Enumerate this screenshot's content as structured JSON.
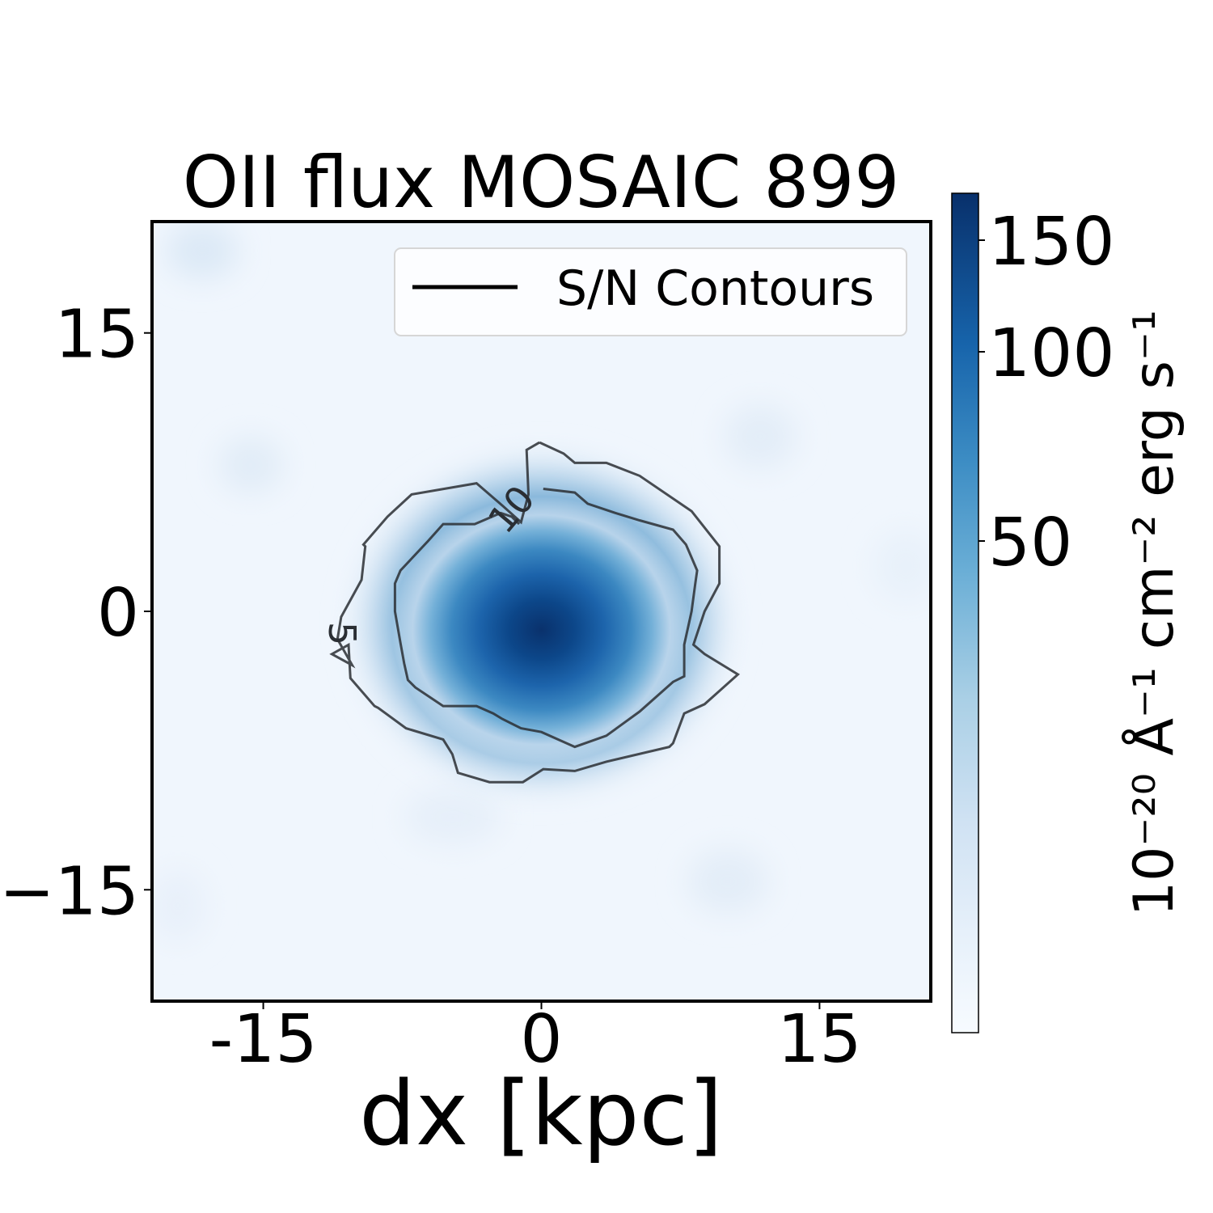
{
  "chart_data": {
    "type": "heatmap",
    "title": "OII flux MOSAIC 899",
    "xlabel": "dx [kpc]",
    "ylabel": "",
    "xlim": [
      -21,
      21
    ],
    "ylim": [
      -21,
      21
    ],
    "x_ticks": [
      -15,
      0,
      15
    ],
    "x_tick_labels": [
      "-15",
      "0",
      "15"
    ],
    "y_ticks": [
      15,
      0,
      -15
    ],
    "y_tick_labels": [
      "15",
      "0",
      "−15"
    ],
    "colormap": "Blues",
    "colorbar": {
      "label": "10⁻²⁰ Å⁻¹ cm⁻² erg s⁻¹",
      "range": [
        0,
        170
      ],
      "ticks": [
        150,
        100,
        50
      ],
      "tick_labels": [
        "150",
        "100",
        "50"
      ],
      "scale": "nonlinear"
    },
    "peak": {
      "x": 0,
      "y": -1,
      "value": 170
    },
    "contours": [
      {
        "level": 5,
        "label": "5",
        "points": [
          [
            -0.1,
            9.1
          ],
          [
            1.2,
            8.5
          ],
          [
            1.8,
            8
          ],
          [
            3.5,
            8
          ],
          [
            5.3,
            7.3
          ],
          [
            8.1,
            5.4
          ],
          [
            9.6,
            3.5
          ],
          [
            9.6,
            1.5
          ],
          [
            8.8,
            0
          ],
          [
            8.2,
            -1.8
          ],
          [
            8.8,
            -2.3
          ],
          [
            10.6,
            -3.4
          ],
          [
            8.8,
            -5
          ],
          [
            7.7,
            -5.5
          ],
          [
            7.1,
            -7.1
          ],
          [
            6.9,
            -7.3
          ],
          [
            3.5,
            -8.1
          ],
          [
            1.8,
            -8.6
          ],
          [
            0.1,
            -8.5
          ],
          [
            -1,
            -9.2
          ],
          [
            -2.8,
            -9.2
          ],
          [
            -4.5,
            -8.7
          ],
          [
            -4.8,
            -7.7
          ],
          [
            -5.3,
            -6.9
          ],
          [
            -7.3,
            -6.3
          ],
          [
            -8.8,
            -5.2
          ],
          [
            -9,
            -5.1
          ],
          [
            -10.3,
            -3.6
          ],
          [
            -10.4,
            -1.8
          ],
          [
            -11.3,
            -2.3
          ],
          [
            -10.2,
            -2.9
          ],
          [
            -11,
            -1.5
          ],
          [
            -10.8,
            -0.3
          ],
          [
            -9.7,
            1.7
          ],
          [
            -9.5,
            3.5
          ],
          [
            -9.6,
            3.6
          ],
          [
            -8.3,
            5.1
          ],
          [
            -7,
            6.3
          ],
          [
            -3.5,
            6.9
          ],
          [
            -2.1,
            5.7
          ],
          [
            -1.1,
            4.8
          ],
          [
            -0.7,
            6.3
          ],
          [
            -0.8,
            8.7
          ],
          [
            -0.1,
            9.1
          ]
        ]
      },
      {
        "level": 10,
        "label": "10",
        "points": [
          [
            -1.2,
            4.7
          ],
          [
            -1.6,
            5.1
          ],
          [
            -2.2,
            5.3
          ],
          [
            -3.6,
            4.7
          ],
          [
            -5.3,
            4.7
          ],
          [
            -6.1,
            3.8
          ],
          [
            -7.6,
            2.2
          ],
          [
            -7.9,
            1.5
          ],
          [
            -7.9,
            0
          ],
          [
            -7.6,
            -1.7
          ],
          [
            -7.4,
            -2.8
          ],
          [
            -7.2,
            -3.7
          ],
          [
            -6.8,
            -4.1
          ],
          [
            -5.3,
            -5.1
          ],
          [
            -3.5,
            -5.1
          ],
          [
            -2.6,
            -5.5
          ],
          [
            -2.1,
            -5.8
          ],
          [
            -1.1,
            -6.3
          ],
          [
            0,
            -6.5
          ],
          [
            1.8,
            -7.3
          ],
          [
            3.5,
            -6.7
          ],
          [
            5.3,
            -5.4
          ],
          [
            7.1,
            -3.8
          ],
          [
            7.7,
            -3.5
          ],
          [
            7.7,
            -1.8
          ],
          [
            8.1,
            0
          ],
          [
            8.3,
            1.5
          ],
          [
            8.4,
            2.2
          ],
          [
            7.8,
            3.6
          ],
          [
            7.1,
            4.4
          ],
          [
            5.3,
            4.9
          ],
          [
            4,
            5.3
          ],
          [
            2.5,
            5.8
          ],
          [
            1.8,
            6.4
          ],
          [
            0.1,
            6.6
          ]
        ]
      }
    ],
    "legend": {
      "entries": [
        "S/N Contours"
      ],
      "placement": "upper right"
    },
    "grid": false
  }
}
